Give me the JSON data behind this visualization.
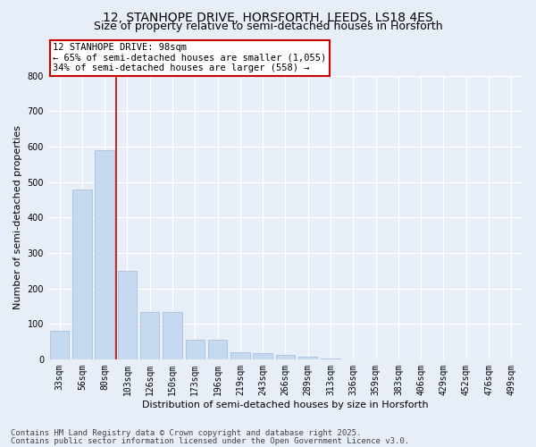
{
  "title_line1": "12, STANHOPE DRIVE, HORSFORTH, LEEDS, LS18 4ES",
  "title_line2": "Size of property relative to semi-detached houses in Horsforth",
  "xlabel": "Distribution of semi-detached houses by size in Horsforth",
  "ylabel": "Number of semi-detached properties",
  "categories": [
    "33sqm",
    "56sqm",
    "80sqm",
    "103sqm",
    "126sqm",
    "150sqm",
    "173sqm",
    "196sqm",
    "219sqm",
    "243sqm",
    "266sqm",
    "289sqm",
    "313sqm",
    "336sqm",
    "359sqm",
    "383sqm",
    "406sqm",
    "429sqm",
    "452sqm",
    "476sqm",
    "499sqm"
  ],
  "values": [
    80,
    478,
    590,
    248,
    133,
    133,
    55,
    55,
    20,
    17,
    12,
    7,
    3,
    0,
    0,
    0,
    0,
    0,
    0,
    0,
    0
  ],
  "bar_color": "#c5d9f0",
  "bar_edge_color": "#a0b8d8",
  "vline_color": "#cc0000",
  "annotation_title": "12 STANHOPE DRIVE: 98sqm",
  "annotation_line2": "← 65% of semi-detached houses are smaller (1,055)",
  "annotation_line3": "34% of semi-detached houses are larger (558) →",
  "annotation_box_color": "#cc0000",
  "ylim": [
    0,
    800
  ],
  "yticks": [
    0,
    100,
    200,
    300,
    400,
    500,
    600,
    700,
    800
  ],
  "footer_line1": "Contains HM Land Registry data © Crown copyright and database right 2025.",
  "footer_line2": "Contains public sector information licensed under the Open Government Licence v3.0.",
  "bg_color": "#e8eef7",
  "plot_bg_color": "#e8eef7",
  "grid_color": "#ffffff",
  "title_fontsize": 10,
  "subtitle_fontsize": 9,
  "axis_label_fontsize": 8,
  "tick_fontsize": 7,
  "annotation_fontsize": 7.5,
  "footer_fontsize": 6.5
}
